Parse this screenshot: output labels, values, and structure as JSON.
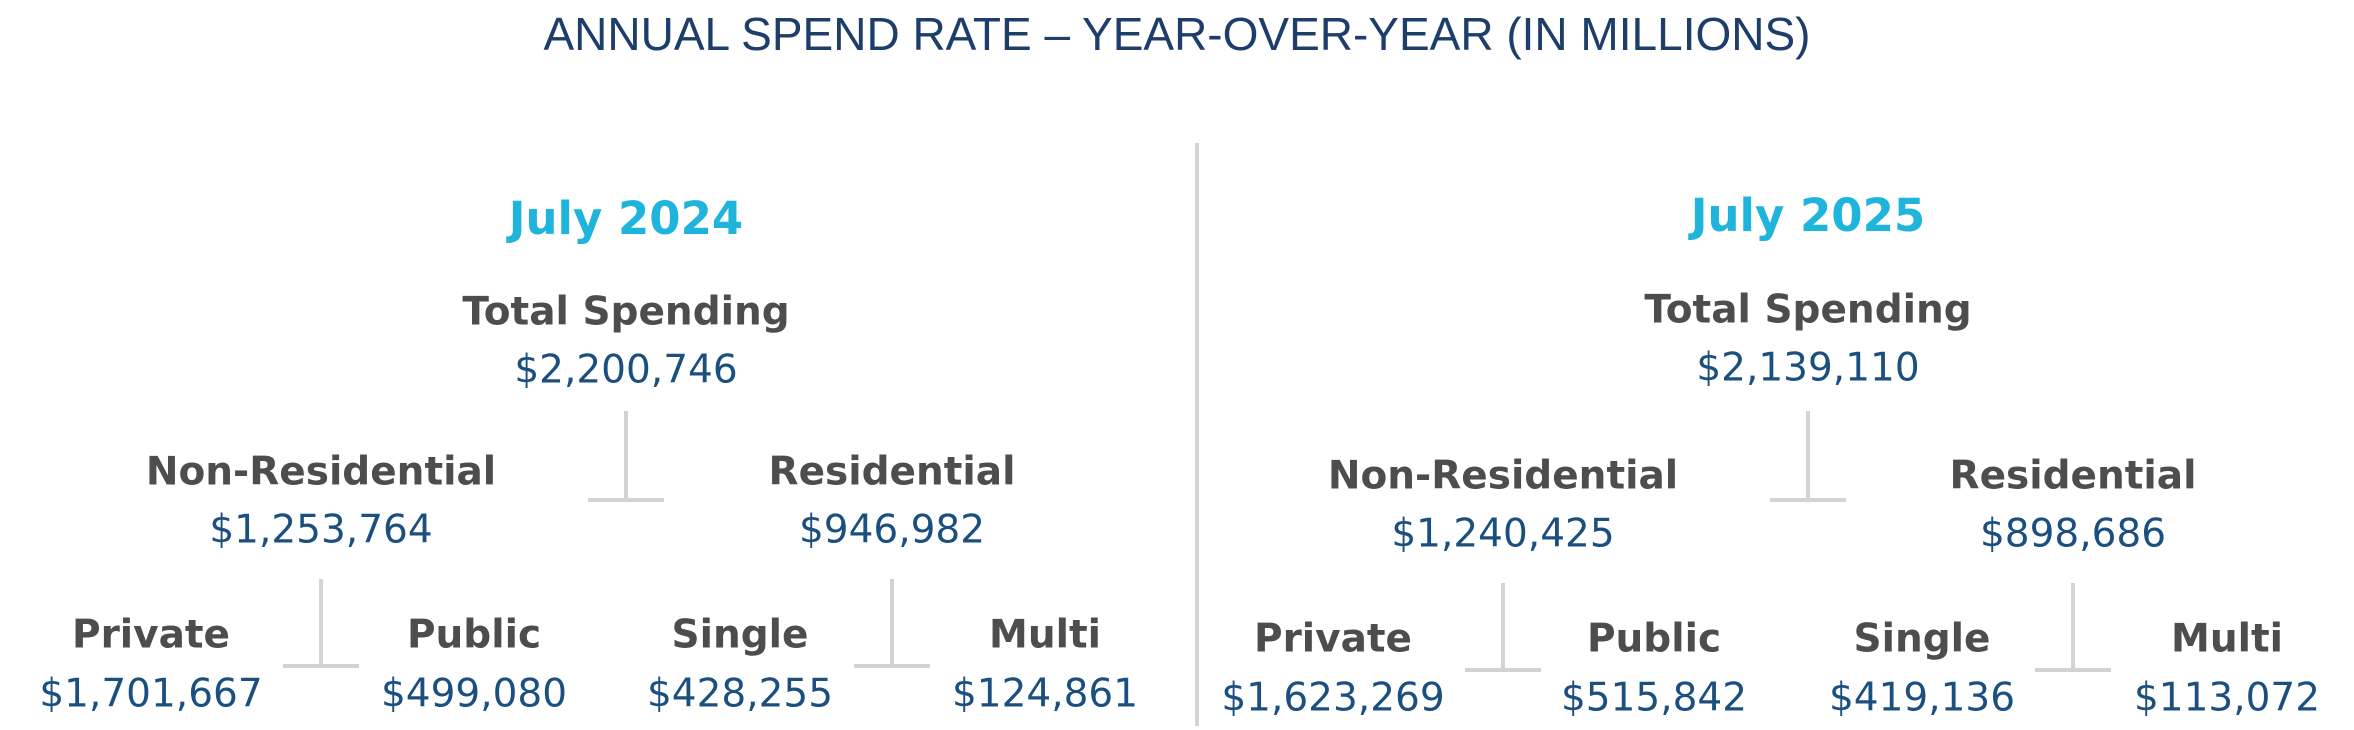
{
  "title": "ANNUAL SPEND RATE – YEAR-OVER-YEAR (IN MILLIONS)",
  "panels": [
    {
      "period": "July 2024",
      "total": {
        "label": "Total Spending",
        "value": "$2,200,746"
      },
      "groups": [
        {
          "label": "Non-Residential",
          "value": "$1,253,764",
          "children": [
            {
              "label": "Private",
              "value": "$1,701,667"
            },
            {
              "label": "Public",
              "value": "$499,080"
            }
          ]
        },
        {
          "label": "Residential",
          "value": "$946,982",
          "children": [
            {
              "label": "Single",
              "value": "$428,255"
            },
            {
              "label": "Multi",
              "value": "$124,861"
            }
          ]
        }
      ]
    },
    {
      "period": "July 2025",
      "total": {
        "label": "Total Spending",
        "value": "$2,139,110"
      },
      "groups": [
        {
          "label": "Non-Residential",
          "value": "$1,240,425",
          "children": [
            {
              "label": "Private",
              "value": "$1,623,269"
            },
            {
              "label": "Public",
              "value": "$515,842"
            }
          ]
        },
        {
          "label": "Residential",
          "value": "$898,686",
          "children": [
            {
              "label": "Single",
              "value": "$419,136"
            },
            {
              "label": "Multi",
              "value": "$113,072"
            }
          ]
        }
      ]
    }
  ]
}
